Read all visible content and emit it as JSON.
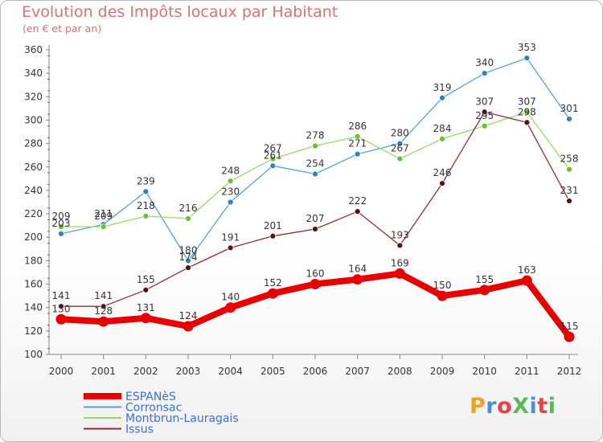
{
  "title": "Evolution des Impôts locaux par Habitant",
  "subtitle": "(en € et par an)",
  "logo": {
    "text": "ProXiti",
    "letter_colors": [
      "#f0a020",
      "#4a90d9",
      "#e94040",
      "#5bb85b",
      "#4a90d9",
      "#e94040",
      "#5bb85b"
    ]
  },
  "chart_data": {
    "type": "line",
    "title": "Evolution des Impôts locaux par Habitant",
    "subtitle": "(en € et par an)",
    "xlabel": "",
    "ylabel": "",
    "categories": [
      "2000",
      "2001",
      "2002",
      "2003",
      "2004",
      "2005",
      "2006",
      "2007",
      "2008",
      "2009",
      "2010",
      "2011",
      "2012"
    ],
    "ylim": [
      100,
      360
    ],
    "yticks": [
      100,
      120,
      140,
      160,
      180,
      200,
      220,
      240,
      260,
      280,
      300,
      320,
      340,
      360
    ],
    "grid": false,
    "legend_position": "bottom-left",
    "series": [
      {
        "name": "ESPANèS",
        "color": "#e80000",
        "marker_color": "#e80000",
        "line_width": 8,
        "marker_r": 6.5,
        "values": [
          130,
          128,
          131,
          124,
          140,
          152,
          160,
          164,
          169,
          150,
          155,
          163,
          115
        ],
        "labels": [
          "130",
          "128",
          "131",
          "124",
          "140",
          "152",
          "160",
          "164",
          "169",
          "150",
          "155",
          "163",
          "115"
        ]
      },
      {
        "name": "Corronsac",
        "color": "#5aa0d8",
        "marker_color": "#2f7fc8",
        "line_width": 1.3,
        "marker_r": 3.5,
        "values": [
          203,
          211,
          239,
          180,
          230,
          261,
          254,
          271,
          280,
          319,
          340,
          353,
          301
        ],
        "labels": [
          "203",
          "211",
          "239",
          "180",
          "230",
          "261",
          "254",
          "271",
          "280",
          "319",
          "340",
          "353",
          "301"
        ]
      },
      {
        "name": "Montbrun-Lauragais",
        "color": "#9ad86a",
        "marker_color": "#6cc030",
        "line_width": 1.3,
        "marker_r": 3.5,
        "values": [
          209,
          209,
          218,
          216,
          248,
          267,
          278,
          286,
          267,
          284,
          295,
          307,
          258
        ],
        "labels": [
          "209",
          "209",
          "218",
          "216",
          "248",
          "267",
          "278",
          "286",
          "267",
          "284",
          "295",
          "307",
          "258"
        ]
      },
      {
        "name": "Issus",
        "color": "#8b3030",
        "marker_color": "#5a1010",
        "line_width": 1.3,
        "marker_r": 3.5,
        "values": [
          141,
          141,
          155,
          174,
          191,
          201,
          207,
          222,
          193,
          246,
          307,
          298,
          231
        ],
        "labels": [
          "141",
          "141",
          "155",
          "174",
          "191",
          "201",
          "207",
          "222",
          "193",
          "246",
          "307",
          "298",
          "231"
        ]
      }
    ]
  }
}
